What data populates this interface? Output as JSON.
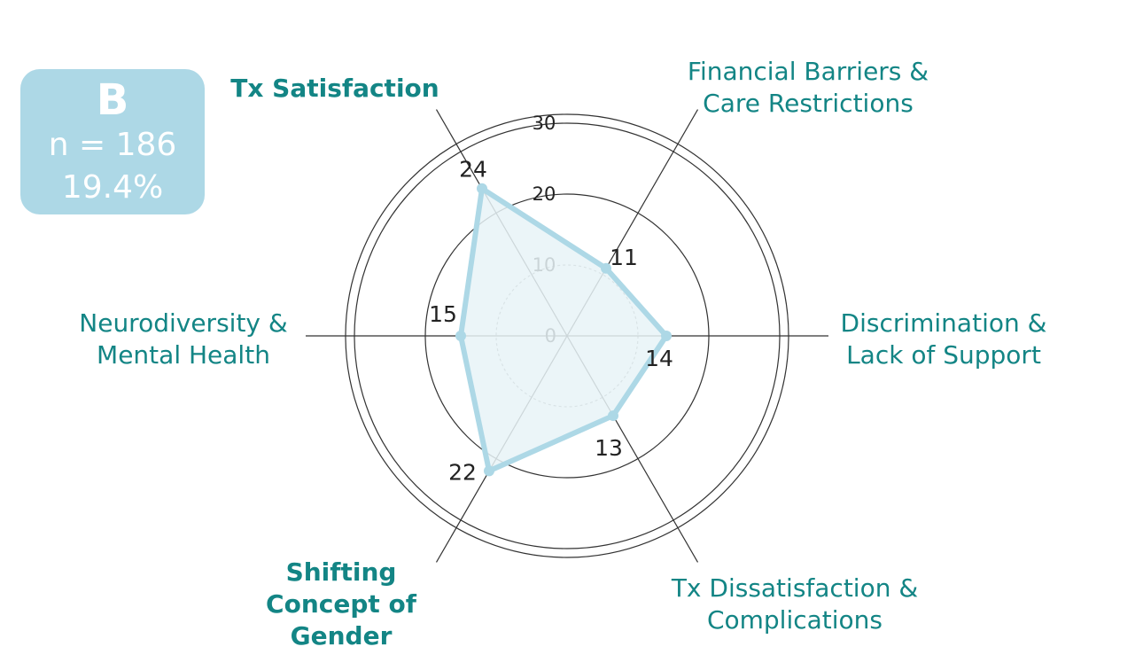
{
  "badge": {
    "letter": "B",
    "n": "n = 186",
    "pct": "19.4%"
  },
  "colors": {
    "accent": "#add8e6",
    "label": "#138585",
    "fill": "#e8f3f7"
  },
  "chart_data": {
    "type": "radar",
    "rmax": 30,
    "ticks": [
      0,
      10,
      20,
      30
    ],
    "grid": true,
    "categories": [
      {
        "label": [
          "Tx Satisfaction"
        ],
        "bold": true,
        "value": 24
      },
      {
        "label": [
          "Financial Barriers &",
          "Care Restrictions"
        ],
        "bold": false,
        "value": 11
      },
      {
        "label": [
          "Discrimination &",
          "Lack of Support"
        ],
        "bold": false,
        "value": 14
      },
      {
        "label": [
          "Tx Dissatisfaction &",
          "Complications"
        ],
        "bold": false,
        "value": 13
      },
      {
        "label": [
          "Shifting",
          "Concept of",
          "Gender"
        ],
        "bold": true,
        "value": 22
      },
      {
        "label": [
          "Neurodiversity &",
          "Mental Health"
        ],
        "bold": false,
        "value": 15
      }
    ]
  }
}
